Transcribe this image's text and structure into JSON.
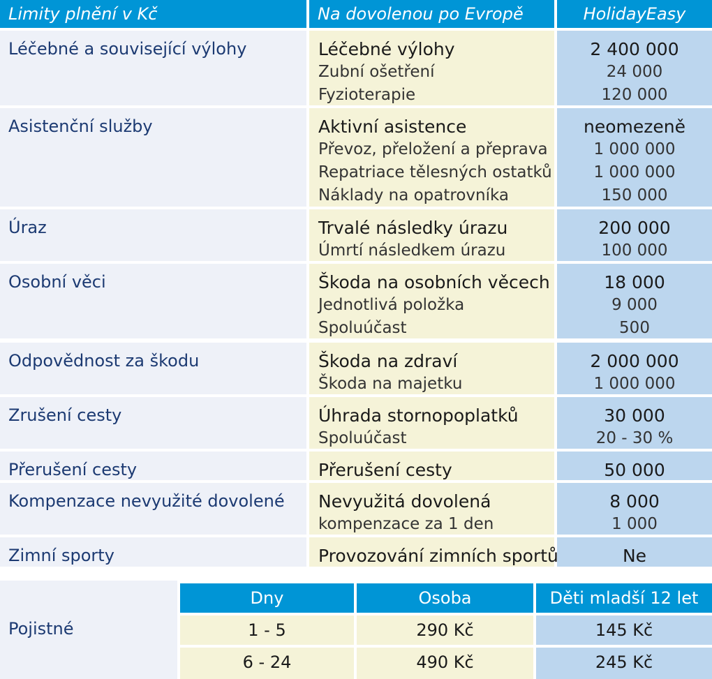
{
  "header": {
    "col1": "Limity plnění v Kč",
    "col2": "Na dovolenou po Evropě",
    "col3": "HolidayEasy"
  },
  "rows": [
    {
      "category": "Léčebné a související výlohy",
      "items": [
        [
          "Léčebné výlohy",
          "2 400 000"
        ],
        [
          "Zubní ošetření",
          "24 000"
        ],
        [
          "Fyzioterapie",
          "120 000"
        ]
      ]
    },
    {
      "category": "Asistenční služby",
      "items": [
        [
          "Aktivní asistence",
          "neomezeně"
        ],
        [
          "Převoz, přeložení a přeprava",
          "1 000 000"
        ],
        [
          "Repatriace tělesných ostatků",
          "1 000 000"
        ],
        [
          "Náklady na opatrovníka",
          "150 000"
        ]
      ]
    },
    {
      "category": "Úraz",
      "items": [
        [
          "Trvalé následky úrazu",
          "200 000"
        ],
        [
          "Úmrtí následkem úrazu",
          "100 000"
        ]
      ]
    },
    {
      "category": "Osobní věci",
      "items": [
        [
          "Škoda na osobních věcech",
          "18 000"
        ],
        [
          "Jednotlivá položka",
          "9 000"
        ],
        [
          "Spoluúčast",
          "500"
        ]
      ]
    },
    {
      "category": "Odpovědnost za škodu",
      "items": [
        [
          "Škoda na zdraví",
          "2 000 000"
        ],
        [
          "Škoda na majetku",
          "1 000 000"
        ]
      ]
    },
    {
      "category": "Zrušení cesty",
      "items": [
        [
          "Úhrada stornopoplatků",
          "30 000"
        ],
        [
          "Spoluúčast",
          "20 - 30 %"
        ]
      ]
    },
    {
      "category": "Přerušení cesty",
      "items": [
        [
          "Přerušení cesty",
          "50 000"
        ]
      ]
    },
    {
      "category": "Kompenzace nevyužité dovolené",
      "items": [
        [
          "Nevyužitá dovolená",
          "8 000"
        ],
        [
          "kompenzace za 1 den",
          "1 000"
        ]
      ]
    },
    {
      "category": "Zimní sporty",
      "items": [
        [
          "Provozování zimních sportů",
          "Ne"
        ]
      ]
    }
  ],
  "premium": {
    "label": "Pojistné",
    "headers": [
      "Dny",
      "Osoba",
      "Děti mladší 12 let"
    ],
    "rows": [
      [
        "1 - 5",
        "290 Kč",
        "145 Kč"
      ],
      [
        "6 - 24",
        "490 Kč",
        "245 Kč"
      ]
    ]
  }
}
